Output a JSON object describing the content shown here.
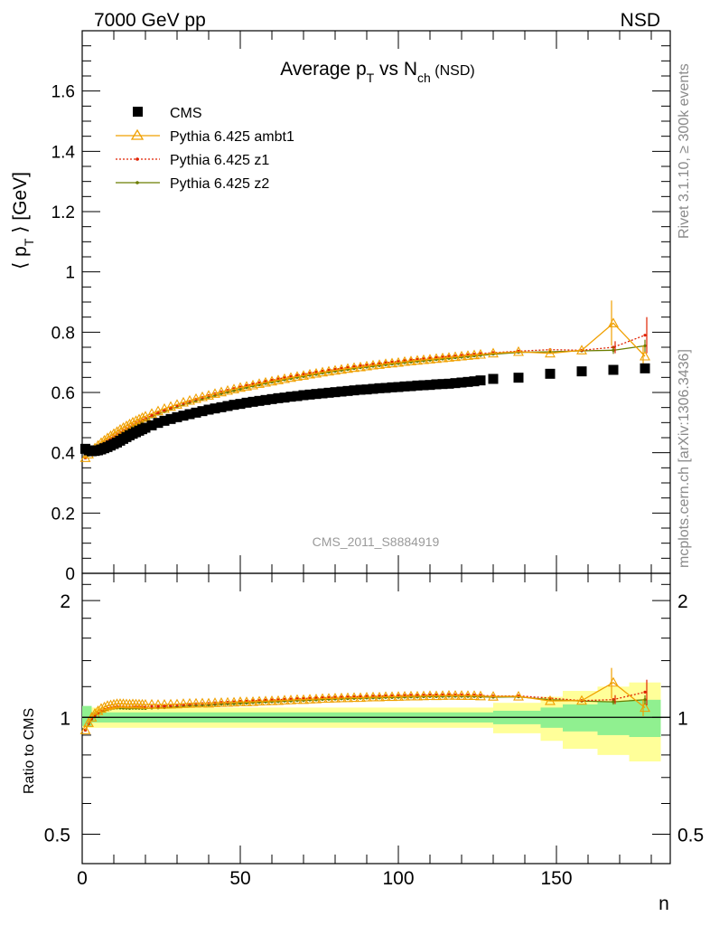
{
  "header": {
    "left": "7000 GeV pp",
    "right": "NSD"
  },
  "side_labels": {
    "rivet": "Rivet 3.1.10, ≥ 300k events",
    "mcplots": "mcplots.cern.ch [arXiv:1306.3436]"
  },
  "colors": {
    "cms": "#000000",
    "ambt1": "#f0a000",
    "z1": "#e02000",
    "z2": "#6b7d00",
    "band_inner": "#90f090",
    "band_outer": "#ffff99"
  },
  "chart_data": [
    {
      "type": "scatter",
      "title": {
        "main": "Average p",
        "sub1": "T",
        "mid": " vs N",
        "sub2": "ch",
        "tail": " (NSD)"
      },
      "ylabel": {
        "pre": "⟨ p",
        "sub": "T",
        "post": " ⟩ [GeV]"
      },
      "watermark": "CMS_2011_S8884919",
      "xlim": [
        0,
        186
      ],
      "ylim": [
        0,
        1.8
      ],
      "yticks": [
        "0",
        "0.2",
        "0.4",
        "0.6",
        "0.8",
        "1",
        "1.2",
        "1.4",
        "1.6"
      ],
      "legend_position": "top-left",
      "x": [
        1,
        2,
        3,
        4,
        5,
        6,
        7,
        8,
        9,
        10,
        11,
        12,
        13,
        14,
        15,
        16,
        17,
        18,
        19,
        20,
        22,
        24,
        26,
        28,
        30,
        32,
        34,
        36,
        38,
        40,
        42,
        44,
        46,
        48,
        50,
        52,
        54,
        56,
        58,
        60,
        62,
        64,
        66,
        68,
        70,
        72,
        74,
        76,
        78,
        80,
        82,
        84,
        86,
        88,
        90,
        92,
        94,
        96,
        98,
        100,
        102,
        104,
        106,
        108,
        110,
        112,
        114,
        116,
        118,
        120,
        122,
        124,
        126,
        130,
        138,
        148,
        158,
        168,
        178
      ],
      "series": [
        {
          "name": "CMS",
          "marker": "square",
          "values": [
            0.413,
            0.408,
            0.405,
            0.406,
            0.408,
            0.411,
            0.415,
            0.419,
            0.424,
            0.429,
            0.434,
            0.44,
            0.446,
            0.452,
            0.458,
            0.463,
            0.468,
            0.473,
            0.478,
            0.483,
            0.491,
            0.499,
            0.506,
            0.512,
            0.518,
            0.523,
            0.528,
            0.533,
            0.538,
            0.543,
            0.547,
            0.551,
            0.555,
            0.559,
            0.562,
            0.566,
            0.569,
            0.572,
            0.575,
            0.578,
            0.581,
            0.583,
            0.586,
            0.588,
            0.591,
            0.593,
            0.595,
            0.597,
            0.599,
            0.601,
            0.603,
            0.605,
            0.607,
            0.609,
            0.61,
            0.612,
            0.614,
            0.615,
            0.617,
            0.618,
            0.62,
            0.621,
            0.623,
            0.624,
            0.625,
            0.627,
            0.628,
            0.629,
            0.631,
            0.633,
            0.635,
            0.637,
            0.64,
            0.645,
            0.649,
            0.662,
            0.67,
            0.675,
            0.68
          ]
        },
        {
          "name": "Pythia 6.425 ambt1",
          "marker": "triangle",
          "values": [
            0.383,
            0.395,
            0.405,
            0.415,
            0.424,
            0.433,
            0.441,
            0.449,
            0.456,
            0.463,
            0.47,
            0.477,
            0.483,
            0.489,
            0.495,
            0.501,
            0.506,
            0.511,
            0.516,
            0.521,
            0.53,
            0.538,
            0.546,
            0.553,
            0.56,
            0.567,
            0.573,
            0.579,
            0.585,
            0.59,
            0.596,
            0.601,
            0.606,
            0.611,
            0.616,
            0.62,
            0.624,
            0.629,
            0.633,
            0.637,
            0.641,
            0.645,
            0.649,
            0.653,
            0.656,
            0.66,
            0.663,
            0.667,
            0.67,
            0.673,
            0.676,
            0.679,
            0.682,
            0.684,
            0.687,
            0.69,
            0.692,
            0.695,
            0.697,
            0.699,
            0.702,
            0.704,
            0.706,
            0.708,
            0.71,
            0.712,
            0.714,
            0.716,
            0.718,
            0.72,
            0.722,
            0.724,
            0.726,
            0.73,
            0.735,
            0.73,
            0.74,
            0.83,
            0.72
          ]
        },
        {
          "name": "Pythia 6.425 z1",
          "marker": "dot",
          "values": [
            0.383,
            0.393,
            0.402,
            0.411,
            0.419,
            0.427,
            0.435,
            0.442,
            0.449,
            0.456,
            0.463,
            0.469,
            0.475,
            0.481,
            0.487,
            0.493,
            0.499,
            0.504,
            0.509,
            0.514,
            0.524,
            0.533,
            0.541,
            0.549,
            0.557,
            0.564,
            0.571,
            0.578,
            0.584,
            0.59,
            0.596,
            0.602,
            0.607,
            0.613,
            0.618,
            0.623,
            0.628,
            0.632,
            0.637,
            0.641,
            0.645,
            0.649,
            0.653,
            0.657,
            0.661,
            0.664,
            0.668,
            0.671,
            0.674,
            0.677,
            0.68,
            0.683,
            0.686,
            0.689,
            0.691,
            0.694,
            0.696,
            0.699,
            0.701,
            0.703,
            0.706,
            0.708,
            0.71,
            0.712,
            0.714,
            0.716,
            0.718,
            0.72,
            0.721,
            0.723,
            0.725,
            0.727,
            0.729,
            0.732,
            0.737,
            0.742,
            0.74,
            0.75,
            0.79
          ]
        },
        {
          "name": "Pythia 6.425 z2",
          "marker": "dot",
          "values": [
            0.383,
            0.392,
            0.401,
            0.409,
            0.417,
            0.425,
            0.432,
            0.439,
            0.446,
            0.453,
            0.459,
            0.465,
            0.471,
            0.477,
            0.483,
            0.489,
            0.494,
            0.499,
            0.504,
            0.509,
            0.519,
            0.528,
            0.536,
            0.544,
            0.552,
            0.559,
            0.566,
            0.572,
            0.578,
            0.584,
            0.59,
            0.596,
            0.601,
            0.606,
            0.611,
            0.616,
            0.621,
            0.625,
            0.63,
            0.634,
            0.638,
            0.642,
            0.646,
            0.65,
            0.653,
            0.657,
            0.66,
            0.664,
            0.667,
            0.67,
            0.673,
            0.676,
            0.679,
            0.682,
            0.684,
            0.687,
            0.689,
            0.692,
            0.694,
            0.696,
            0.699,
            0.701,
            0.703,
            0.705,
            0.707,
            0.709,
            0.711,
            0.713,
            0.715,
            0.717,
            0.719,
            0.721,
            0.723,
            0.727,
            0.733,
            0.735,
            0.738,
            0.74,
            0.755
          ]
        }
      ],
      "last_points_error": {
        "ambt1": [
          0.075,
          0.035
        ],
        "z1": [
          0.02,
          0.06
        ],
        "z2": [
          0.012,
          0.02
        ]
      }
    },
    {
      "type": "line",
      "ylabel": "Ratio to CMS",
      "xlabel": "n",
      "xlim": [
        0,
        186
      ],
      "ylim_log": [
        0.42,
        2.35
      ],
      "yticks": [
        "0.5",
        "1",
        "2"
      ],
      "xticks": [
        "0",
        "50",
        "100",
        "150"
      ],
      "reference_line": 1,
      "uncertainty_band": {
        "x_edges": [
          0,
          130,
          145,
          152,
          163,
          173,
          183
        ],
        "inner_half_width": [
          0.03,
          0.04,
          0.06,
          0.08,
          0.1,
          0.11
        ],
        "outer_half_width": [
          0.06,
          0.09,
          0.13,
          0.17,
          0.2,
          0.23
        ],
        "start_inner": [
          0.95,
          1.07
        ]
      }
    }
  ]
}
